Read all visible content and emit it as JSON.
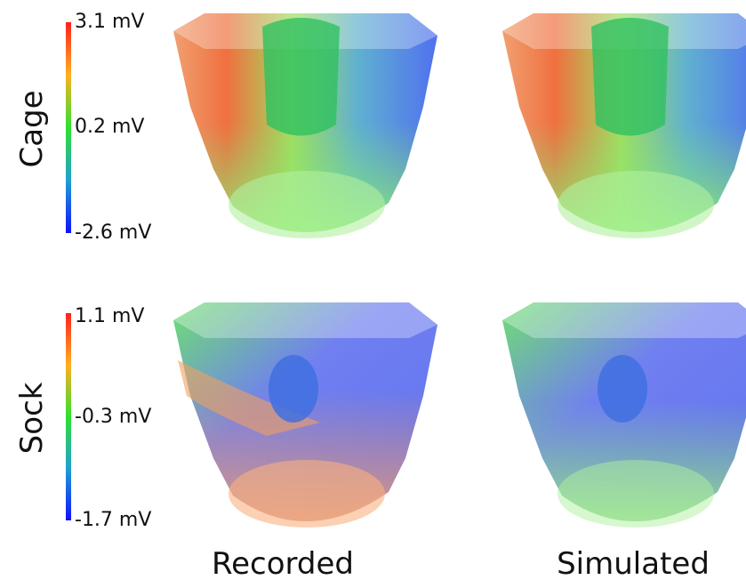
{
  "rows": [
    {
      "label": "Cage",
      "scale": {
        "max": "3.1 mV",
        "mid": "0.2 mV",
        "min": "-2.6 mV"
      }
    },
    {
      "label": "Sock",
      "scale": {
        "max": "1.1 mV",
        "mid": "-0.3 mV",
        "min": "-1.7 mV"
      }
    }
  ],
  "columns": [
    "Recorded",
    "Simulated"
  ]
}
